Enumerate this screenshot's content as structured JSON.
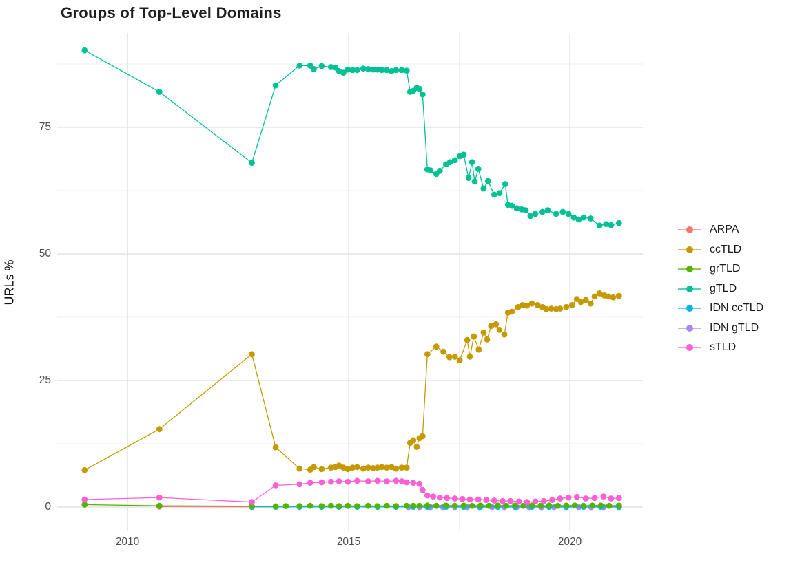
{
  "figure": {
    "title": "Groups of Top-Level Domains"
  },
  "y_axis": {
    "label": "URLs %",
    "tick_labels": [
      "0",
      "25",
      "50",
      "75"
    ],
    "tick_values": [
      0,
      25,
      50,
      75
    ],
    "minor_tick_values": [
      12.5,
      37.5,
      62.5,
      87.5
    ]
  },
  "x_axis": {
    "tick_labels": [
      "2010",
      "2015",
      "2020"
    ],
    "tick_values": [
      2010,
      2015,
      2020
    ],
    "minor_tick_values": [
      2012.5,
      2017.5
    ]
  },
  "legend": {
    "position": "right",
    "items": [
      {
        "label": "ARPA",
        "color": "#F8766D"
      },
      {
        "label": "ccTLD",
        "color": "#C49A00"
      },
      {
        "label": "grTLD",
        "color": "#53B400"
      },
      {
        "label": "gTLD",
        "color": "#00C094"
      },
      {
        "label": "IDN ccTLD",
        "color": "#00B6EB"
      },
      {
        "label": "IDN gTLD",
        "color": "#A58AFF"
      },
      {
        "label": "sTLD",
        "color": "#FB61D7"
      }
    ]
  },
  "colors": {
    "grid_major": "#e3e3e3",
    "grid_minor": "#efefef",
    "tick_text": "#4d4d4d"
  },
  "chart_data": {
    "type": "line",
    "title": "Groups of Top-Level Domains",
    "xlabel": "",
    "ylabel": "URLs %",
    "xlim": [
      2008.41,
      2021.65
    ],
    "ylim": [
      -4.75,
      93.62
    ],
    "grid": true,
    "legend_position": "right",
    "x_ticks_major": [
      2010,
      2015,
      2020
    ],
    "x_ticks_minor": [
      2012.5,
      2017.5
    ],
    "y_ticks_major": [
      0,
      25,
      50,
      75
    ],
    "y_ticks_minor": [
      12.5,
      37.5,
      62.5,
      87.5
    ],
    "series": [
      {
        "name": "ARPA",
        "color": "#F8766D",
        "points": [
          [
            2010.72,
            0.1
          ],
          [
            2012.81,
            0.05
          ]
        ]
      },
      {
        "name": "ccTLD",
        "color": "#C49A00",
        "points": [
          [
            2009.03,
            7.3
          ],
          [
            2010.72,
            15.4
          ],
          [
            2012.81,
            30.2
          ],
          [
            2013.35,
            11.8
          ],
          [
            2013.89,
            7.6
          ],
          [
            2014.13,
            7.4
          ],
          [
            2014.21,
            7.9
          ],
          [
            2014.39,
            7.5
          ],
          [
            2014.6,
            7.8
          ],
          [
            2014.7,
            7.9
          ],
          [
            2014.78,
            8.2
          ],
          [
            2014.88,
            7.8
          ],
          [
            2014.98,
            7.5
          ],
          [
            2015.09,
            7.8
          ],
          [
            2015.19,
            7.9
          ],
          [
            2015.33,
            7.6
          ],
          [
            2015.44,
            7.8
          ],
          [
            2015.55,
            7.7
          ],
          [
            2015.65,
            7.8
          ],
          [
            2015.75,
            7.9
          ],
          [
            2015.86,
            7.8
          ],
          [
            2015.97,
            7.9
          ],
          [
            2016.07,
            7.6
          ],
          [
            2016.2,
            7.8
          ],
          [
            2016.31,
            7.8
          ],
          [
            2016.39,
            12.7
          ],
          [
            2016.46,
            13.2
          ],
          [
            2016.54,
            11.9
          ],
          [
            2016.6,
            13.6
          ],
          [
            2016.67,
            14.0
          ],
          [
            2016.78,
            30.2
          ],
          [
            2016.98,
            31.7
          ],
          [
            2017.14,
            30.7
          ],
          [
            2017.28,
            29.6
          ],
          [
            2017.4,
            29.7
          ],
          [
            2017.51,
            29.0
          ],
          [
            2017.68,
            33.0
          ],
          [
            2017.74,
            29.7
          ],
          [
            2017.83,
            33.7
          ],
          [
            2017.94,
            31.1
          ],
          [
            2018.05,
            34.5
          ],
          [
            2018.13,
            33.1
          ],
          [
            2018.22,
            35.8
          ],
          [
            2018.33,
            36.1
          ],
          [
            2018.41,
            35.0
          ],
          [
            2018.52,
            34.1
          ],
          [
            2018.6,
            38.4
          ],
          [
            2018.69,
            38.6
          ],
          [
            2018.83,
            39.5
          ],
          [
            2018.93,
            39.9
          ],
          [
            2019.03,
            39.8
          ],
          [
            2019.14,
            40.2
          ],
          [
            2019.27,
            39.9
          ],
          [
            2019.38,
            39.5
          ],
          [
            2019.47,
            39.1
          ],
          [
            2019.58,
            39.2
          ],
          [
            2019.69,
            39.1
          ],
          [
            2019.78,
            39.2
          ],
          [
            2019.92,
            39.5
          ],
          [
            2020.05,
            39.9
          ],
          [
            2020.16,
            41.1
          ],
          [
            2020.25,
            40.5
          ],
          [
            2020.36,
            40.9
          ],
          [
            2020.47,
            40.2
          ],
          [
            2020.56,
            41.6
          ],
          [
            2020.67,
            42.2
          ],
          [
            2020.78,
            41.8
          ],
          [
            2020.87,
            41.6
          ],
          [
            2020.98,
            41.4
          ],
          [
            2021.11,
            41.7
          ]
        ]
      },
      {
        "name": "grTLD",
        "color": "#53B400",
        "points": [
          [
            2009.03,
            0.5
          ],
          [
            2010.72,
            0.25
          ],
          [
            2012.81,
            0.2
          ],
          [
            2013.35,
            0.15
          ],
          [
            2013.58,
            0.2
          ],
          [
            2013.89,
            0.2
          ],
          [
            2014.13,
            0.25
          ],
          [
            2014.39,
            0.2
          ],
          [
            2014.6,
            0.25
          ],
          [
            2014.78,
            0.2
          ],
          [
            2014.98,
            0.25
          ],
          [
            2015.19,
            0.2
          ],
          [
            2015.44,
            0.25
          ],
          [
            2015.65,
            0.2
          ],
          [
            2015.86,
            0.25
          ],
          [
            2016.07,
            0.2
          ],
          [
            2016.31,
            0.25
          ],
          [
            2016.46,
            0.25
          ],
          [
            2016.6,
            0.25
          ],
          [
            2016.78,
            0.3
          ],
          [
            2016.98,
            0.25
          ],
          [
            2017.2,
            0.3
          ],
          [
            2017.4,
            0.25
          ],
          [
            2017.6,
            0.3
          ],
          [
            2017.79,
            0.25
          ],
          [
            2017.98,
            0.3
          ],
          [
            2018.17,
            0.25
          ],
          [
            2018.37,
            0.3
          ],
          [
            2018.56,
            0.25
          ],
          [
            2018.76,
            0.3
          ],
          [
            2018.95,
            0.25
          ],
          [
            2019.14,
            0.3
          ],
          [
            2019.34,
            0.25
          ],
          [
            2019.53,
            0.3
          ],
          [
            2019.73,
            0.25
          ],
          [
            2019.92,
            0.3
          ],
          [
            2020.11,
            0.3
          ],
          [
            2020.31,
            0.25
          ],
          [
            2020.51,
            0.3
          ],
          [
            2020.7,
            0.3
          ],
          [
            2020.89,
            0.25
          ],
          [
            2021.11,
            0.3
          ]
        ]
      },
      {
        "name": "gTLD",
        "color": "#00C094",
        "points": [
          [
            2009.03,
            90.2
          ],
          [
            2010.72,
            82.0
          ],
          [
            2012.81,
            68.0
          ],
          [
            2013.35,
            83.3
          ],
          [
            2013.89,
            87.2
          ],
          [
            2014.13,
            87.2
          ],
          [
            2014.21,
            86.5
          ],
          [
            2014.39,
            87.1
          ],
          [
            2014.6,
            86.9
          ],
          [
            2014.7,
            86.8
          ],
          [
            2014.78,
            86.1
          ],
          [
            2014.88,
            85.8
          ],
          [
            2014.98,
            86.4
          ],
          [
            2015.09,
            86.3
          ],
          [
            2015.19,
            86.3
          ],
          [
            2015.33,
            86.6
          ],
          [
            2015.44,
            86.5
          ],
          [
            2015.55,
            86.4
          ],
          [
            2015.65,
            86.4
          ],
          [
            2015.75,
            86.3
          ],
          [
            2015.86,
            86.3
          ],
          [
            2015.97,
            86.1
          ],
          [
            2016.07,
            86.3
          ],
          [
            2016.2,
            86.3
          ],
          [
            2016.31,
            86.2
          ],
          [
            2016.39,
            82.0
          ],
          [
            2016.46,
            82.2
          ],
          [
            2016.54,
            82.8
          ],
          [
            2016.6,
            82.6
          ],
          [
            2016.67,
            81.5
          ],
          [
            2016.78,
            66.7
          ],
          [
            2016.85,
            66.5
          ],
          [
            2016.98,
            65.8
          ],
          [
            2017.06,
            66.4
          ],
          [
            2017.2,
            67.7
          ],
          [
            2017.29,
            68.1
          ],
          [
            2017.4,
            68.5
          ],
          [
            2017.51,
            69.3
          ],
          [
            2017.6,
            69.6
          ],
          [
            2017.71,
            65.0
          ],
          [
            2017.79,
            68.1
          ],
          [
            2017.85,
            64.3
          ],
          [
            2017.93,
            66.8
          ],
          [
            2018.05,
            62.9
          ],
          [
            2018.15,
            64.4
          ],
          [
            2018.29,
            61.7
          ],
          [
            2018.41,
            62.0
          ],
          [
            2018.54,
            63.8
          ],
          [
            2018.6,
            59.7
          ],
          [
            2018.69,
            59.5
          ],
          [
            2018.8,
            59.0
          ],
          [
            2018.91,
            58.8
          ],
          [
            2019.0,
            58.6
          ],
          [
            2019.11,
            57.5
          ],
          [
            2019.22,
            57.9
          ],
          [
            2019.38,
            58.3
          ],
          [
            2019.5,
            58.6
          ],
          [
            2019.69,
            57.9
          ],
          [
            2019.84,
            58.3
          ],
          [
            2019.97,
            57.9
          ],
          [
            2020.09,
            57.2
          ],
          [
            2020.2,
            56.8
          ],
          [
            2020.31,
            57.2
          ],
          [
            2020.47,
            57.0
          ],
          [
            2020.67,
            55.6
          ],
          [
            2020.82,
            55.9
          ],
          [
            2020.93,
            55.7
          ],
          [
            2021.11,
            56.1
          ]
        ]
      },
      {
        "name": "IDN ccTLD",
        "color": "#00B6EB",
        "points": [
          [
            2012.81,
            0.05
          ],
          [
            2013.35,
            0.05
          ],
          [
            2013.89,
            0.05
          ],
          [
            2014.39,
            0.05
          ],
          [
            2014.78,
            0.05
          ],
          [
            2015.19,
            0.05
          ],
          [
            2015.65,
            0.05
          ],
          [
            2016.07,
            0.05
          ],
          [
            2016.46,
            0.05
          ],
          [
            2016.78,
            0.05
          ],
          [
            2017.2,
            0.05
          ],
          [
            2017.6,
            0.05
          ],
          [
            2017.98,
            0.05
          ],
          [
            2018.37,
            0.05
          ],
          [
            2018.76,
            0.05
          ],
          [
            2019.14,
            0.05
          ],
          [
            2019.53,
            0.05
          ],
          [
            2019.92,
            0.05
          ],
          [
            2020.31,
            0.05
          ],
          [
            2020.7,
            0.05
          ],
          [
            2021.11,
            0.05
          ]
        ]
      },
      {
        "name": "IDN gTLD",
        "color": "#A58AFF",
        "points": [
          [
            2016.35,
            0.0
          ],
          [
            2016.6,
            0.0
          ],
          [
            2016.85,
            0.0
          ],
          [
            2017.13,
            0.0
          ],
          [
            2017.4,
            0.0
          ],
          [
            2017.68,
            0.0
          ],
          [
            2017.96,
            0.0
          ],
          [
            2018.24,
            0.0
          ],
          [
            2018.52,
            0.0
          ],
          [
            2018.8,
            0.0
          ],
          [
            2019.08,
            0.0
          ],
          [
            2019.36,
            0.0
          ],
          [
            2019.64,
            0.0
          ],
          [
            2019.92,
            0.0
          ],
          [
            2020.2,
            0.0
          ],
          [
            2020.48,
            0.0
          ],
          [
            2020.76,
            0.0
          ],
          [
            2021.11,
            0.0
          ]
        ]
      },
      {
        "name": "sTLD",
        "color": "#FB61D7",
        "points": [
          [
            2009.03,
            1.5
          ],
          [
            2010.72,
            1.9
          ],
          [
            2012.81,
            1.0
          ],
          [
            2013.35,
            4.3
          ],
          [
            2013.89,
            4.5
          ],
          [
            2014.13,
            4.8
          ],
          [
            2014.39,
            4.9
          ],
          [
            2014.6,
            5.0
          ],
          [
            2014.78,
            5.1
          ],
          [
            2014.98,
            5.0
          ],
          [
            2015.19,
            5.2
          ],
          [
            2015.44,
            5.1
          ],
          [
            2015.65,
            5.2
          ],
          [
            2015.86,
            5.1
          ],
          [
            2016.07,
            5.2
          ],
          [
            2016.2,
            5.1
          ],
          [
            2016.31,
            4.9
          ],
          [
            2016.46,
            4.8
          ],
          [
            2016.6,
            4.6
          ],
          [
            2016.67,
            3.4
          ],
          [
            2016.78,
            2.3
          ],
          [
            2016.91,
            2.1
          ],
          [
            2017.06,
            1.9
          ],
          [
            2017.22,
            1.8
          ],
          [
            2017.4,
            1.7
          ],
          [
            2017.57,
            1.6
          ],
          [
            2017.74,
            1.5
          ],
          [
            2017.93,
            1.5
          ],
          [
            2018.11,
            1.4
          ],
          [
            2018.29,
            1.3
          ],
          [
            2018.48,
            1.2
          ],
          [
            2018.66,
            1.2
          ],
          [
            2018.85,
            1.1
          ],
          [
            2019.03,
            1.0
          ],
          [
            2019.22,
            1.1
          ],
          [
            2019.41,
            1.2
          ],
          [
            2019.6,
            1.4
          ],
          [
            2019.78,
            1.7
          ],
          [
            2019.97,
            1.9
          ],
          [
            2020.16,
            2.0
          ],
          [
            2020.36,
            1.7
          ],
          [
            2020.56,
            1.8
          ],
          [
            2020.76,
            2.1
          ],
          [
            2020.93,
            1.7
          ],
          [
            2021.11,
            1.8
          ]
        ]
      }
    ]
  }
}
